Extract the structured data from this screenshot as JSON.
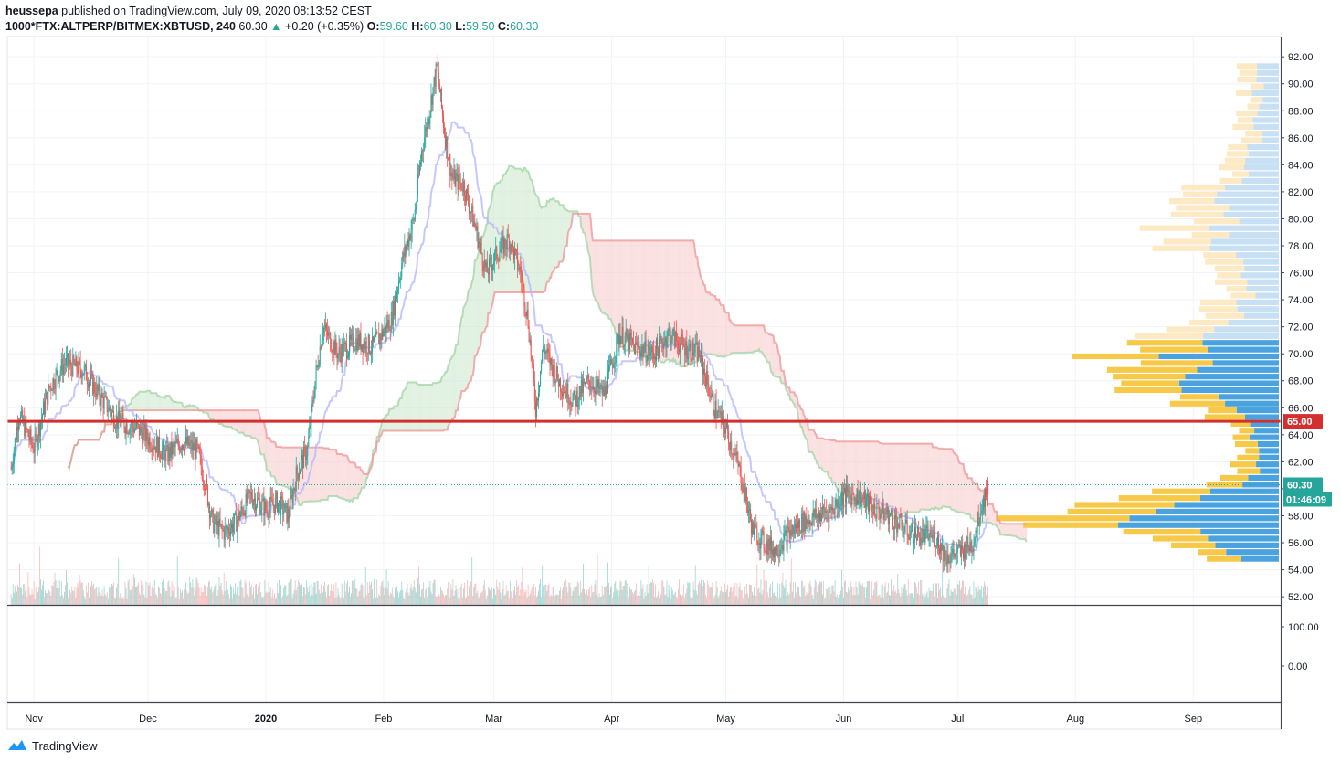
{
  "header": {
    "author": "heussepa",
    "published_text": "published on TradingView.com, July 09, 2020 08:13:52 CEST",
    "symbol": "1000*FTX:ALTPERP/BITMEX:XBTUSD, 240",
    "last": "60.30",
    "change_arrow": "▲",
    "change": "+0.20 (+0.35%)",
    "o_label": "O:",
    "o": "59.60",
    "h_label": "H:",
    "h": "60.30",
    "l_label": "L:",
    "l": "59.50",
    "c_label": "C:",
    "c": "60.30"
  },
  "footer": {
    "brand": "TradingView",
    "logo_icon": "tradingview-cloud-icon"
  },
  "colors": {
    "up": "#26a69a",
    "down": "#ef5350",
    "grid": "#f0f3fa",
    "resistance": "#d32f2f",
    "last_price": "#26a69a",
    "vp_up": "#4aa3df",
    "vp_down": "#f7c948",
    "cloud_bull": "#c8e6c9",
    "cloud_bear": "#f8c6c6",
    "tenkan": "#b0b6ff",
    "kijun": "#a5d6a7"
  },
  "chart_data": {
    "type": "candlestick",
    "price_axis": {
      "ticks": [
        "92.00",
        "90.00",
        "88.00",
        "86.00",
        "84.00",
        "82.00",
        "80.00",
        "78.00",
        "76.00",
        "74.00",
        "72.00",
        "70.00",
        "68.00",
        "66.00",
        "64.00",
        "62.00",
        "60.00",
        "58.00",
        "56.00",
        "54.00",
        "52.00"
      ],
      "ylim": [
        51.4,
        93.5
      ]
    },
    "indicator_axis": {
      "ticks": [
        "100.00",
        "0.00"
      ]
    },
    "time_axis": {
      "labels": [
        "Nov",
        "Dec",
        "2020",
        "Feb",
        "Mar",
        "Apr",
        "May",
        "Jun",
        "Jul",
        "Aug",
        "Sep"
      ]
    },
    "resistance_line": {
      "value": 65.0,
      "label": "65.00"
    },
    "last_price": {
      "value": 60.3,
      "label": "60.30",
      "countdown": "01:46:09"
    },
    "price_path": [
      [
        "2019-10-26",
        61.5
      ],
      [
        "2019-10-28",
        65.5
      ],
      [
        "2019-11-01",
        63.0
      ],
      [
        "2019-11-05",
        67.5
      ],
      [
        "2019-11-09",
        69.3
      ],
      [
        "2019-11-14",
        68.8
      ],
      [
        "2019-11-18",
        67.0
      ],
      [
        "2019-11-23",
        65.0
      ],
      [
        "2019-11-28",
        64.5
      ],
      [
        "2019-12-02",
        63.5
      ],
      [
        "2019-12-06",
        62.5
      ],
      [
        "2019-12-10",
        63.5
      ],
      [
        "2019-12-14",
        62.8
      ],
      [
        "2019-12-16",
        60.5
      ],
      [
        "2019-12-18",
        57.5
      ],
      [
        "2019-12-21",
        56.8
      ],
      [
        "2019-12-24",
        57.5
      ],
      [
        "2019-12-28",
        59.5
      ],
      [
        "2020-01-01",
        58.5
      ],
      [
        "2020-01-04",
        59.0
      ],
      [
        "2020-01-07",
        58.0
      ],
      [
        "2020-01-09",
        61.0
      ],
      [
        "2020-01-12",
        63.0
      ],
      [
        "2020-01-14",
        68.0
      ],
      [
        "2020-01-16",
        72.0
      ],
      [
        "2020-01-20",
        70.0
      ],
      [
        "2020-01-25",
        71.0
      ],
      [
        "2020-01-29",
        70.5
      ],
      [
        "2020-02-03",
        72.5
      ],
      [
        "2020-02-06",
        77.0
      ],
      [
        "2020-02-09",
        80.0
      ],
      [
        "2020-02-11",
        85.0
      ],
      [
        "2020-02-13",
        88.0
      ],
      [
        "2020-02-15",
        91.2
      ],
      [
        "2020-02-17",
        86.5
      ],
      [
        "2020-02-19",
        83.0
      ],
      [
        "2020-02-22",
        82.5
      ],
      [
        "2020-02-25",
        79.5
      ],
      [
        "2020-02-28",
        76.0
      ],
      [
        "2020-03-02",
        77.5
      ],
      [
        "2020-03-05",
        78.5
      ],
      [
        "2020-03-08",
        76.0
      ],
      [
        "2020-03-10",
        72.5
      ],
      [
        "2020-03-12",
        66.0
      ],
      [
        "2020-03-14",
        70.5
      ],
      [
        "2020-03-18",
        68.0
      ],
      [
        "2020-03-22",
        66.5
      ],
      [
        "2020-03-26",
        68.0
      ],
      [
        "2020-03-30",
        67.0
      ],
      [
        "2020-04-03",
        71.5
      ],
      [
        "2020-04-07",
        70.5
      ],
      [
        "2020-04-12",
        70.0
      ],
      [
        "2020-04-16",
        71.5
      ],
      [
        "2020-04-20",
        70.5
      ],
      [
        "2020-04-24",
        70.0
      ],
      [
        "2020-04-28",
        66.0
      ],
      [
        "2020-05-01",
        64.5
      ],
      [
        "2020-05-05",
        61.0
      ],
      [
        "2020-05-08",
        57.0
      ],
      [
        "2020-05-11",
        56.0
      ],
      [
        "2020-05-14",
        55.5
      ],
      [
        "2020-05-17",
        56.5
      ],
      [
        "2020-05-21",
        57.5
      ],
      [
        "2020-05-25",
        58.0
      ],
      [
        "2020-05-29",
        58.5
      ],
      [
        "2020-06-01",
        59.5
      ],
      [
        "2020-06-05",
        59.5
      ],
      [
        "2020-06-09",
        58.5
      ],
      [
        "2020-06-13",
        58.0
      ],
      [
        "2020-06-17",
        57.0
      ],
      [
        "2020-06-21",
        56.5
      ],
      [
        "2020-06-25",
        56.5
      ],
      [
        "2020-06-28",
        55.0
      ],
      [
        "2020-07-02",
        55.3
      ],
      [
        "2020-07-05",
        56.0
      ],
      [
        "2020-07-07",
        58.5
      ],
      [
        "2020-07-09",
        60.3
      ]
    ]
  }
}
